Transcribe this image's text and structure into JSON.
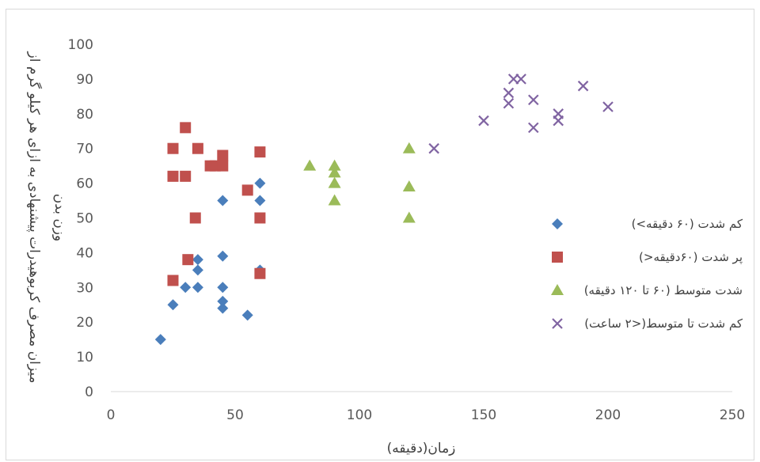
{
  "chart_data": {
    "type": "scatter",
    "title": "",
    "xlabel": "زمان(دقیقه)",
    "ylabel_line1": "میزان مصرف کربوهیدرات پیشنهادی به ازای هر کیلو گرم از",
    "ylabel_line2": "وزن بدن",
    "xlim": [
      0,
      250
    ],
    "ylim": [
      0,
      100
    ],
    "x_ticks": [
      "0",
      "50",
      "100",
      "150",
      "200",
      "250"
    ],
    "y_ticks": [
      "0",
      "10",
      "20",
      "30",
      "40",
      "50",
      "60",
      "70",
      "80",
      "90",
      "100"
    ],
    "grid": false,
    "legend_position": "right",
    "series": [
      {
        "name": "کم شدت (۶۰ دقیقه>)",
        "marker": "diamond",
        "color": "#4a7ebb",
        "points": [
          [
            20,
            15
          ],
          [
            25,
            25
          ],
          [
            30,
            30
          ],
          [
            35,
            30
          ],
          [
            35,
            35
          ],
          [
            35,
            38
          ],
          [
            45,
            24
          ],
          [
            45,
            26
          ],
          [
            45,
            30
          ],
          [
            45,
            39
          ],
          [
            45,
            55
          ],
          [
            55,
            22
          ],
          [
            60,
            35
          ],
          [
            60,
            55
          ],
          [
            60,
            60
          ]
        ]
      },
      {
        "name": "پر شدت (۶۰دقیقه<)",
        "marker": "square",
        "color": "#c0504d",
        "points": [
          [
            25,
            32
          ],
          [
            25,
            62
          ],
          [
            25,
            70
          ],
          [
            30,
            62
          ],
          [
            30,
            76
          ],
          [
            31,
            38
          ],
          [
            34,
            50
          ],
          [
            35,
            70
          ],
          [
            40,
            65
          ],
          [
            42,
            65
          ],
          [
            45,
            65
          ],
          [
            45,
            68
          ],
          [
            55,
            58
          ],
          [
            60,
            34
          ],
          [
            60,
            50
          ],
          [
            60,
            69
          ]
        ]
      },
      {
        "name": "شدت متوسط (۶۰ تا ۱۲۰ دقیقه)",
        "marker": "triangle",
        "color": "#9bbb59",
        "points": [
          [
            80,
            65
          ],
          [
            90,
            55
          ],
          [
            90,
            60
          ],
          [
            90,
            63
          ],
          [
            90,
            65
          ],
          [
            120,
            50
          ],
          [
            120,
            59
          ],
          [
            120,
            70
          ]
        ]
      },
      {
        "name": "کم شدت تا متوسط(<۲ ساعت)",
        "marker": "x",
        "color": "#8064a2",
        "points": [
          [
            130,
            70
          ],
          [
            150,
            78
          ],
          [
            160,
            83
          ],
          [
            160,
            86
          ],
          [
            162,
            90
          ],
          [
            165,
            90
          ],
          [
            170,
            76
          ],
          [
            170,
            84
          ],
          [
            180,
            78
          ],
          [
            180,
            80
          ],
          [
            190,
            88
          ],
          [
            200,
            82
          ]
        ]
      }
    ]
  }
}
